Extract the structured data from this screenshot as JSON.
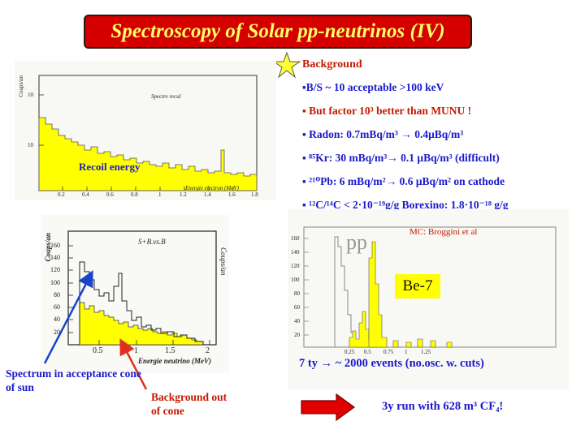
{
  "title": "Spectroscopy of Solar pp-neutrinos (IV)",
  "background_heading": "Background",
  "bullets": {
    "b1": "▪B/S ~ 10 acceptable  >100 keV",
    "b2": "▪ But factor 10³ better than  MUNU !",
    "b3": "▪ Radon:  0.7mBq/m³ → 0.4μBq/m³",
    "b4": "▪ ⁸⁵Kr:  30 mBq/m³→ 0.1 μBq/m³ (difficult)",
    "b5": "▪ ²¹⁰Pb:  6 mBq/m²→ 0.6 μBq/m²  on cathode",
    "b6": "▪ ¹²C/¹⁴C < 2·10⁻¹⁹g/g   Borexino: 1.8·10⁻¹⁸ g/g"
  },
  "recoil_plot": {
    "ylabel": "Coups/an",
    "inner_label": "Spectre recul",
    "xlabel": "Energie electron (MeV)",
    "caption": "Recoil energy",
    "yticks": [
      "10",
      "10"
    ],
    "xticks": [
      "0.2",
      "0.4",
      "0.6",
      "0.8",
      "1",
      "1.2",
      "1.4",
      "1.6",
      "1.8"
    ]
  },
  "neutrino_plot": {
    "ylabel": "Coups/an",
    "ylabel_right": "Coups/an",
    "inner_label": "S+B.vs.B",
    "xlabel": "Energie neutrino (MeV)",
    "yticks": [
      "160",
      "140",
      "120",
      "100",
      "80",
      "60",
      "40",
      "20"
    ],
    "xticks": [
      "0.5",
      "1",
      "1.5",
      "2"
    ]
  },
  "pp_plot": {
    "credit": "MC: Broggini et al",
    "pp_label": "pp",
    "be7_label": "Be-7",
    "yticks": [
      "160",
      "140",
      "120",
      "100",
      "80",
      "60",
      "40",
      "20"
    ],
    "xticks": [
      "0.25",
      "0.5",
      "0.75",
      "1",
      "1.25"
    ]
  },
  "annotations": {
    "spectrum_cone": "Spectrum in acceptance cone of sun",
    "background_out": "Background out  of cone",
    "events": "7 ty →  ~ 2000 events (no.osc. w. cuts)",
    "run": "3y run with 628 m³ CF₄!"
  },
  "colors": {
    "title_bg": "#d40000",
    "title_text": "#ffff66",
    "bullet_blue": "#1a1acc",
    "bullet_red": "#c41a00",
    "fill_yellow": "#ffff00",
    "arrow_red": "#e00000"
  }
}
